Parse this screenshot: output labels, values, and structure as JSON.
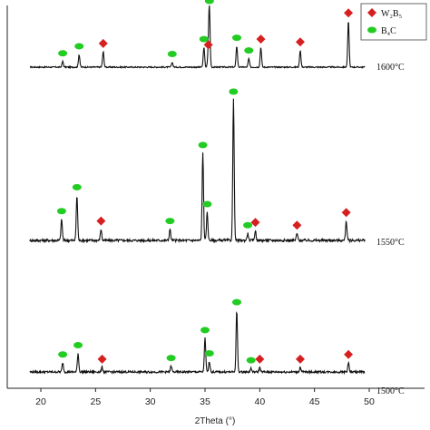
{
  "chart_data": {
    "type": "line",
    "xlabel": "2Theta (°)",
    "ylabel": "",
    "xlim": [
      18,
      52
    ],
    "x_ticks": [
      20,
      25,
      30,
      35,
      40,
      45,
      50
    ],
    "legend": {
      "placement": "top-right",
      "entries": [
        {
          "label": "W₂B₅",
          "marker": "diamond",
          "color": "#d62020"
        },
        {
          "label": "B₄C",
          "marker": "ellipse",
          "color": "#22cc22"
        }
      ]
    },
    "series": [
      {
        "name": "1600°C",
        "peaks": [
          {
            "x": 22.0,
            "h": 0.08,
            "phase": "B4C"
          },
          {
            "x": 23.5,
            "h": 0.18,
            "phase": "B4C"
          },
          {
            "x": 25.7,
            "h": 0.22,
            "phase": "W2B5"
          },
          {
            "x": 32.0,
            "h": 0.07,
            "phase": "B4C"
          },
          {
            "x": 34.9,
            "h": 0.28,
            "phase": "B4C"
          },
          {
            "x": 35.4,
            "h": 0.82,
            "phase": "B4C"
          },
          {
            "x": 35.3,
            "h": 0.2,
            "phase": "W2B5"
          },
          {
            "x": 37.9,
            "h": 0.3,
            "phase": "B4C"
          },
          {
            "x": 39.0,
            "h": 0.12,
            "phase": "B4C"
          },
          {
            "x": 40.1,
            "h": 0.28,
            "phase": "W2B5"
          },
          {
            "x": 43.7,
            "h": 0.24,
            "phase": "W2B5"
          },
          {
            "x": 48.1,
            "h": 0.65,
            "phase": "W2B5"
          }
        ]
      },
      {
        "name": "1550°C",
        "peaks": [
          {
            "x": 21.9,
            "h": 0.15,
            "phase": "B4C"
          },
          {
            "x": 23.3,
            "h": 0.32,
            "phase": "B4C"
          },
          {
            "x": 25.5,
            "h": 0.08,
            "phase": "W2B5"
          },
          {
            "x": 31.8,
            "h": 0.08,
            "phase": "B4C"
          },
          {
            "x": 34.8,
            "h": 0.62,
            "phase": "B4C"
          },
          {
            "x": 35.2,
            "h": 0.2,
            "phase": "B4C"
          },
          {
            "x": 37.6,
            "h": 1.0,
            "phase": "B4C"
          },
          {
            "x": 38.9,
            "h": 0.05,
            "phase": "B4C"
          },
          {
            "x": 39.6,
            "h": 0.07,
            "phase": "W2B5"
          },
          {
            "x": 43.4,
            "h": 0.05,
            "phase": "W2B5"
          },
          {
            "x": 47.9,
            "h": 0.14,
            "phase": "W2B5"
          }
        ]
      },
      {
        "name": "1500°C",
        "peaks": [
          {
            "x": 22.0,
            "h": 0.08,
            "phase": "B4C"
          },
          {
            "x": 23.4,
            "h": 0.16,
            "phase": "B4C"
          },
          {
            "x": 25.6,
            "h": 0.04,
            "phase": "W2B5"
          },
          {
            "x": 31.9,
            "h": 0.05,
            "phase": "B4C"
          },
          {
            "x": 35.0,
            "h": 0.29,
            "phase": "B4C"
          },
          {
            "x": 35.4,
            "h": 0.09,
            "phase": "B4C"
          },
          {
            "x": 37.9,
            "h": 0.53,
            "phase": "B4C"
          },
          {
            "x": 39.2,
            "h": 0.03,
            "phase": "B4C"
          },
          {
            "x": 40.0,
            "h": 0.04,
            "phase": "W2B5"
          },
          {
            "x": 43.7,
            "h": 0.04,
            "phase": "W2B5"
          },
          {
            "x": 48.1,
            "h": 0.08,
            "phase": "W2B5"
          }
        ]
      }
    ]
  }
}
